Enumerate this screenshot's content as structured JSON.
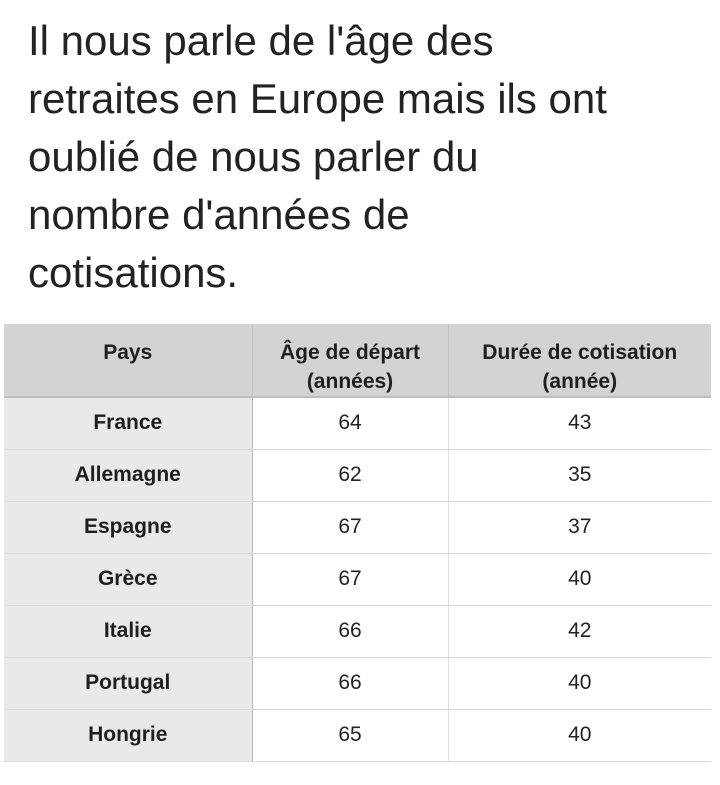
{
  "caption": {
    "lines": [
      "Il nous parle de l'âge des",
      "retraites en Europe mais ils ont",
      "oublié de nous parler du",
      "nombre d'années de",
      "cotisations."
    ]
  },
  "table": {
    "headers": {
      "country": "Pays",
      "age_line1": "Âge de départ",
      "age_line2": "(années)",
      "duration_line1": "Durée de cotisation",
      "duration_line2": "(année)"
    },
    "rows": [
      {
        "country": "France",
        "age": "64",
        "duration": "43"
      },
      {
        "country": "Allemagne",
        "age": "62",
        "duration": "35"
      },
      {
        "country": "Espagne",
        "age": "67",
        "duration": "37"
      },
      {
        "country": "Grèce",
        "age": "67",
        "duration": "40"
      },
      {
        "country": "Italie",
        "age": "66",
        "duration": "42"
      },
      {
        "country": "Portugal",
        "age": "66",
        "duration": "40"
      },
      {
        "country": "Hongrie",
        "age": "65",
        "duration": "40"
      }
    ]
  },
  "colors": {
    "header_background": "#d3d3d3",
    "country_column_background": "#e9e9e9",
    "text": "#222222"
  }
}
